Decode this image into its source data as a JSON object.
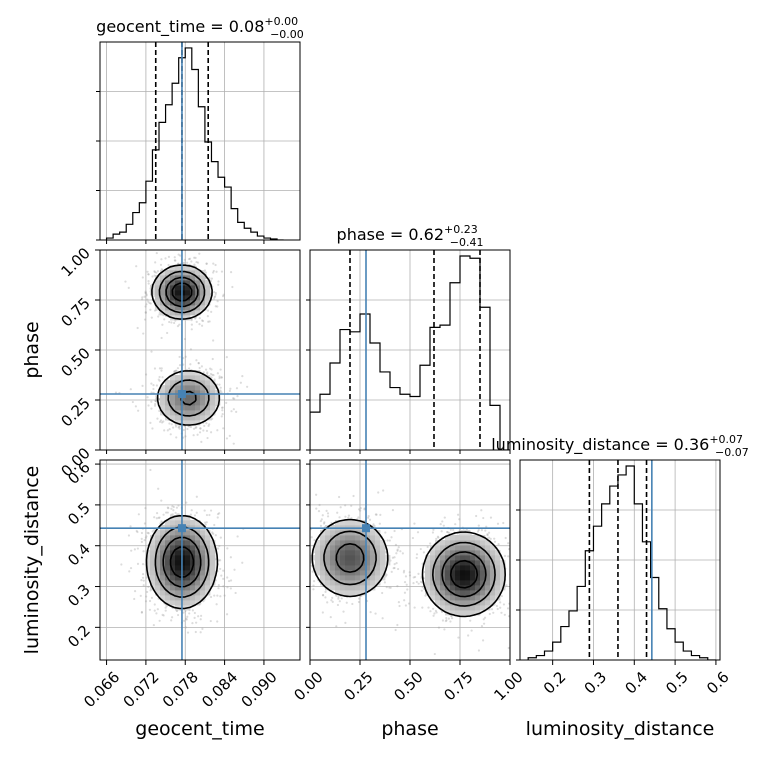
{
  "chart_data": {
    "type": "corner",
    "parameters": [
      {
        "name": "geocent_time",
        "axis_label": "geocent_time",
        "title": "geocent_time = 0.08",
        "title_plus": "+0.00",
        "title_minus": "−0.00",
        "range": [
          0.065,
          0.0955
        ],
        "ticks": [
          0.066,
          0.072,
          0.078,
          0.084,
          0.09
        ],
        "tick_labels": [
          "0.066",
          "0.072",
          "0.078",
          "0.084",
          "0.090"
        ],
        "truth": 0.0775,
        "quantiles": [
          0.0735,
          0.0775,
          0.0815
        ],
        "histogram": {
          "edges": [
            0.066,
            0.067,
            0.068,
            0.069,
            0.07,
            0.071,
            0.072,
            0.073,
            0.074,
            0.075,
            0.076,
            0.077,
            0.078,
            0.079,
            0.08,
            0.081,
            0.082,
            0.083,
            0.084,
            0.085,
            0.086,
            0.087,
            0.088,
            0.089,
            0.09,
            0.091,
            0.092,
            0.093
          ],
          "heights": [
            0.01,
            0.03,
            0.04,
            0.08,
            0.14,
            0.19,
            0.3,
            0.46,
            0.6,
            0.69,
            0.8,
            0.93,
            0.98,
            0.87,
            0.68,
            0.5,
            0.4,
            0.32,
            0.27,
            0.16,
            0.09,
            0.06,
            0.04,
            0.02,
            0.01,
            0.005,
            0.0
          ]
        }
      },
      {
        "name": "phase",
        "axis_label": "phase",
        "title": "phase = 0.62",
        "title_plus": "+0.23",
        "title_minus": "−0.41",
        "range": [
          0.0,
          1.0
        ],
        "ticks": [
          0.0,
          0.25,
          0.5,
          0.75,
          1.0
        ],
        "tick_labels": [
          "0.00",
          "0.25",
          "0.50",
          "0.75",
          "1.00"
        ],
        "truth": 0.28,
        "quantiles": [
          0.2,
          0.62,
          0.85
        ],
        "histogram": {
          "edges": [
            0.0,
            0.05,
            0.1,
            0.15,
            0.2,
            0.25,
            0.3,
            0.35,
            0.4,
            0.45,
            0.5,
            0.55,
            0.6,
            0.65,
            0.7,
            0.75,
            0.8,
            0.85,
            0.9,
            0.95,
            1.0
          ],
          "heights": [
            0.17,
            0.25,
            0.39,
            0.54,
            0.53,
            0.61,
            0.48,
            0.35,
            0.28,
            0.25,
            0.24,
            0.38,
            0.55,
            0.56,
            0.75,
            0.87,
            0.86,
            0.64,
            0.2,
            0.0
          ]
        }
      },
      {
        "name": "luminosity_distance",
        "axis_label": "luminosity_distance",
        "title": "luminosity_distance = 0.36",
        "title_plus": "+0.07",
        "title_minus": "−0.07",
        "range": [
          0.12,
          0.61
        ],
        "ticks": [
          0.2,
          0.3,
          0.4,
          0.5,
          0.6
        ],
        "tick_labels": [
          "0.2",
          "0.3",
          "0.4",
          "0.5",
          "0.6"
        ],
        "truth": 0.443,
        "quantiles": [
          0.29,
          0.36,
          0.43
        ],
        "histogram": {
          "edges": [
            0.14,
            0.16,
            0.18,
            0.2,
            0.22,
            0.24,
            0.26,
            0.28,
            0.3,
            0.32,
            0.34,
            0.36,
            0.38,
            0.4,
            0.42,
            0.44,
            0.46,
            0.48,
            0.5,
            0.52,
            0.54,
            0.56,
            0.58,
            0.6
          ],
          "heights": [
            0.01,
            0.02,
            0.04,
            0.08,
            0.15,
            0.22,
            0.33,
            0.49,
            0.6,
            0.7,
            0.78,
            0.83,
            0.87,
            0.7,
            0.53,
            0.37,
            0.23,
            0.14,
            0.08,
            0.04,
            0.02,
            0.01,
            0.0
          ]
        }
      }
    ],
    "joint": [
      {
        "x": "geocent_time",
        "y": "phase",
        "modes": [
          {
            "cx": 0.0775,
            "cy": 0.79,
            "sx": 0.0022,
            "sy": 0.065,
            "w": 1.0
          },
          {
            "cx": 0.0785,
            "cy": 0.26,
            "sx": 0.0026,
            "sy": 0.075,
            "w": 0.6
          }
        ]
      },
      {
        "x": "geocent_time",
        "y": "luminosity_distance",
        "modes": [
          {
            "cx": 0.0775,
            "cy": 0.36,
            "sx": 0.0026,
            "sy": 0.055,
            "w": 1.0
          }
        ]
      },
      {
        "x": "phase",
        "y": "luminosity_distance",
        "modes": [
          {
            "cx": 0.2,
            "cy": 0.37,
            "sx": 0.1,
            "sy": 0.05,
            "w": 0.7
          },
          {
            "cx": 0.77,
            "cy": 0.33,
            "sx": 0.1,
            "sy": 0.05,
            "w": 1.0
          }
        ]
      }
    ],
    "contour_levels": [
      0.12,
      0.3,
      0.55,
      0.8
    ],
    "truth_color": "#4682b4",
    "line_color": "#000000",
    "grid": true
  }
}
